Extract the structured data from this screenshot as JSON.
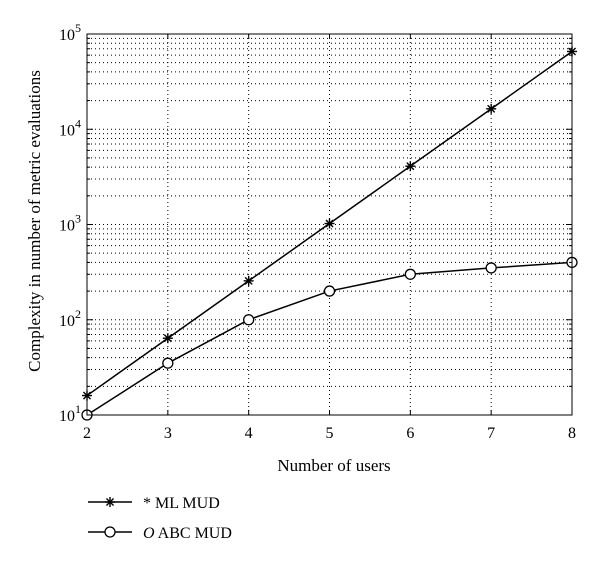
{
  "chart_data": {
    "type": "line",
    "title": "",
    "xlabel": "Number of users",
    "ylabel": "Complexity in number of metric evaluations",
    "x": [
      2,
      3,
      4,
      5,
      6,
      7,
      8
    ],
    "xlim": [
      2,
      8
    ],
    "ylim": [
      10,
      100000
    ],
    "yscale": "log",
    "grid": true,
    "legend_placement": "below-left",
    "x_ticks": [
      {
        "v": 2,
        "t": "2"
      },
      {
        "v": 3,
        "t": "3"
      },
      {
        "v": 4,
        "t": "4"
      },
      {
        "v": 5,
        "t": "5"
      },
      {
        "v": 6,
        "t": "6"
      },
      {
        "v": 7,
        "t": "7"
      },
      {
        "v": 8,
        "t": "8"
      }
    ],
    "y_ticks": [
      {
        "v": 10,
        "base": "10",
        "exp": "1"
      },
      {
        "v": 100,
        "base": "10",
        "exp": "2"
      },
      {
        "v": 1000,
        "base": "10",
        "exp": "3"
      },
      {
        "v": 10000,
        "base": "10",
        "exp": "4"
      },
      {
        "v": 100000,
        "base": "10",
        "exp": "5"
      }
    ],
    "series": [
      {
        "name": "ML MUD",
        "legend_symbol": "*",
        "marker": "star",
        "color": "#000000",
        "values": [
          16,
          64,
          256,
          1024,
          4096,
          16384,
          65536
        ]
      },
      {
        "name": "ABC MUD",
        "legend_symbol": "O",
        "marker": "circle",
        "color": "#000000",
        "values": [
          10,
          35,
          100,
          200,
          300,
          350,
          400
        ]
      }
    ]
  }
}
